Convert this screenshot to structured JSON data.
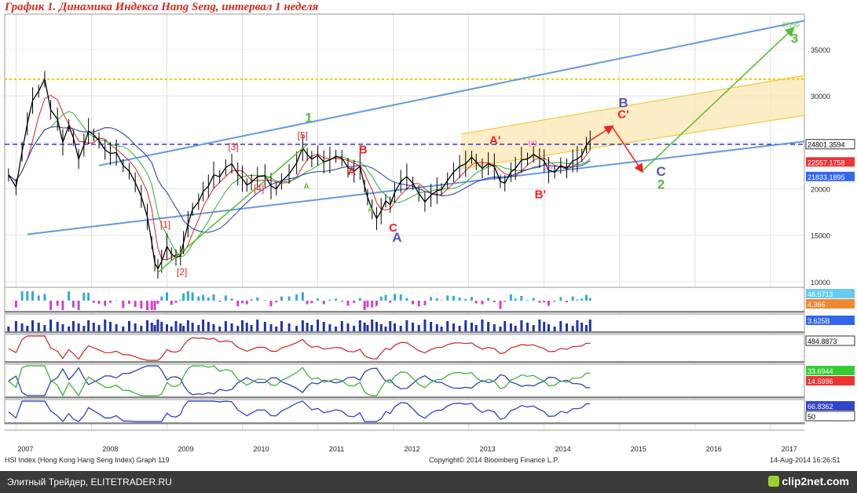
{
  "title": "График 1. Динамика Индекса Hang Seng, интервал 1 неделя",
  "footer": {
    "source": "HSI Index (Hong Kong Hang Seng Index) Graph 119",
    "copyright": "Copyright© 2014 Bloomberg Finance L.P.",
    "timestamp": "14-Aug-2014 16:26:51",
    "author": "Элитный Трейдер, ELITETRADER.RU",
    "logo_text": "clip2net.com"
  },
  "colors": {
    "background": "#ffffff",
    "price_bar": "#000000",
    "channel_blue": "#6699dd",
    "dashed_level": "#3333cc",
    "dotted_level": "#e8d21e",
    "target_channel_fill": "#fbe7b3",
    "wave_green": "#55bb33",
    "wave_red": "#ee2222",
    "wave_blue": "#5555bb",
    "ma_red": "#dd2222",
    "ma_green": "#33aa33",
    "ma_blue": "#2233aa"
  },
  "chart_data": {
    "type": "line",
    "instrument": "HSI Index",
    "interval": "1 неделя",
    "x_ticks": [
      "2007",
      "2008",
      "2009",
      "2010",
      "2011",
      "2012",
      "2013",
      "2014",
      "2015",
      "2016",
      "2017"
    ],
    "y_ticks": [
      10000,
      15000,
      20000,
      25000,
      30000,
      35000
    ],
    "ylim": [
      9400,
      38800
    ],
    "xlim": [
      2006.85,
      2017.45
    ],
    "weekly_close_path": [
      [
        2006.9,
        21500
      ],
      [
        2007.0,
        20200
      ],
      [
        2007.08,
        24000
      ],
      [
        2007.15,
        27000
      ],
      [
        2007.22,
        29500
      ],
      [
        2007.3,
        30500
      ],
      [
        2007.38,
        31800
      ],
      [
        2007.46,
        28500
      ],
      [
        2007.55,
        27500
      ],
      [
        2007.62,
        25000
      ],
      [
        2007.7,
        26800
      ],
      [
        2007.76,
        25500
      ],
      [
        2007.83,
        23200
      ],
      [
        2007.9,
        24700
      ],
      [
        2007.96,
        26200
      ],
      [
        2008.03,
        25800
      ],
      [
        2008.1,
        25200
      ],
      [
        2008.18,
        24200
      ],
      [
        2008.25,
        23800
      ],
      [
        2008.33,
        23900
      ],
      [
        2008.42,
        22500
      ],
      [
        2008.5,
        21900
      ],
      [
        2008.58,
        20700
      ],
      [
        2008.66,
        19200
      ],
      [
        2008.74,
        17000
      ],
      [
        2008.8,
        14200
      ],
      [
        2008.84,
        12000
      ],
      [
        2008.88,
        11400
      ],
      [
        2008.93,
        12200
      ],
      [
        2009.0,
        13800
      ],
      [
        2009.06,
        13000
      ],
      [
        2009.12,
        12600
      ],
      [
        2009.18,
        12800
      ],
      [
        2009.22,
        14200
      ],
      [
        2009.28,
        16200
      ],
      [
        2009.34,
        17800
      ],
      [
        2009.42,
        18600
      ],
      [
        2009.48,
        19700
      ],
      [
        2009.55,
        20300
      ],
      [
        2009.62,
        21500
      ],
      [
        2009.7,
        21300
      ],
      [
        2009.78,
        22300
      ],
      [
        2009.86,
        22700
      ],
      [
        2009.94,
        21600
      ],
      [
        2010.0,
        21100
      ],
      [
        2010.06,
        20400
      ],
      [
        2010.12,
        20700
      ],
      [
        2010.2,
        21300
      ],
      [
        2010.3,
        21400
      ],
      [
        2010.38,
        20300
      ],
      [
        2010.45,
        20000
      ],
      [
        2010.52,
        20800
      ],
      [
        2010.62,
        21600
      ],
      [
        2010.72,
        22800
      ],
      [
        2010.8,
        24400
      ],
      [
        2010.86,
        23700
      ],
      [
        2010.92,
        23200
      ],
      [
        2011.0,
        23600
      ],
      [
        2011.08,
        22900
      ],
      [
        2011.16,
        23100
      ],
      [
        2011.24,
        23500
      ],
      [
        2011.32,
        23300
      ],
      [
        2011.4,
        22300
      ],
      [
        2011.48,
        21900
      ],
      [
        2011.56,
        22400
      ],
      [
        2011.62,
        20300
      ],
      [
        2011.66,
        19100
      ],
      [
        2011.72,
        17800
      ],
      [
        2011.78,
        16800
      ],
      [
        2011.84,
        17600
      ],
      [
        2011.9,
        18700
      ],
      [
        2011.96,
        18300
      ],
      [
        2012.02,
        19600
      ],
      [
        2012.1,
        20800
      ],
      [
        2012.18,
        21300
      ],
      [
        2012.26,
        20600
      ],
      [
        2012.34,
        19500
      ],
      [
        2012.42,
        18600
      ],
      [
        2012.5,
        19300
      ],
      [
        2012.58,
        19800
      ],
      [
        2012.64,
        19900
      ],
      [
        2012.72,
        20900
      ],
      [
        2012.8,
        21800
      ],
      [
        2012.88,
        22400
      ],
      [
        2012.96,
        22700
      ],
      [
        2013.04,
        23400
      ],
      [
        2013.1,
        22900
      ],
      [
        2013.18,
        22200
      ],
      [
        2013.26,
        22700
      ],
      [
        2013.34,
        22400
      ],
      [
        2013.42,
        20800
      ],
      [
        2013.48,
        20600
      ],
      [
        2013.56,
        21800
      ],
      [
        2013.62,
        22200
      ],
      [
        2013.7,
        23100
      ],
      [
        2013.78,
        23200
      ],
      [
        2013.86,
        23700
      ],
      [
        2013.94,
        23300
      ],
      [
        2014.0,
        23000
      ],
      [
        2014.06,
        22000
      ],
      [
        2014.14,
        21800
      ],
      [
        2014.22,
        22500
      ],
      [
        2014.3,
        22200
      ],
      [
        2014.38,
        23000
      ],
      [
        2014.44,
        23200
      ],
      [
        2014.5,
        23600
      ],
      [
        2014.56,
        24700
      ],
      [
        2014.61,
        25200
      ]
    ],
    "projection_path": [
      [
        2014.61,
        25200
      ],
      [
        2014.9,
        26700
      ],
      [
        2015.3,
        21900
      ],
      [
        2017.3,
        37250
      ]
    ],
    "horizontal_levels": [
      {
        "value": 24801.3594,
        "style": "dashed"
      },
      {
        "value": 31800,
        "style": "dotted"
      }
    ],
    "right_labels": [
      {
        "text": "24801.3594",
        "value": 24801.3594
      },
      {
        "text": "22557.1758",
        "value": 22557.1758
      },
      {
        "text": "21833.1895",
        "value": 21833.1895
      }
    ],
    "target_label": "37250",
    "channel_lines": [
      {
        "from": [
          2007.15,
          15100
        ],
        "to": [
          2017.45,
          25100
        ]
      },
      {
        "from": [
          2008.1,
          22500
        ],
        "to": [
          2017.45,
          38100
        ]
      }
    ],
    "target_channel": {
      "lower": [
        [
          2012.9,
          22200
        ],
        [
          2017.45,
          27900
        ]
      ],
      "upper": [
        [
          2012.9,
          25900
        ],
        [
          2017.45,
          32200
        ]
      ]
    },
    "wave_labels": [
      {
        "text": "1",
        "x": 2010.88,
        "y": 27200,
        "color": "green"
      },
      {
        "text": "2",
        "x": 2015.55,
        "y": 20000,
        "color": "green"
      },
      {
        "text": "3",
        "x": 2017.32,
        "y": 35700,
        "color": "green"
      },
      {
        "text": "A",
        "x": 2010.85,
        "y": 20000,
        "color": "green_small"
      },
      {
        "text": "A",
        "x": 2011.7,
        "y": 17500,
        "color": "green_small"
      },
      {
        "text": "A",
        "x": 2011.45,
        "y": 21500,
        "color": "red"
      },
      {
        "text": "B",
        "x": 2011.6,
        "y": 23800,
        "color": "red"
      },
      {
        "text": "C",
        "x": 2012.0,
        "y": 15400,
        "color": "red"
      },
      {
        "text": "A",
        "x": 2012.05,
        "y": 14300,
        "color": "blue"
      },
      {
        "text": "A'",
        "x": 2013.35,
        "y": 24800,
        "color": "red"
      },
      {
        "text": "B'",
        "x": 2013.95,
        "y": 19000,
        "color": "red"
      },
      {
        "text": "C'",
        "x": 2015.05,
        "y": 27600,
        "color": "red"
      },
      {
        "text": "B",
        "x": 2015.05,
        "y": 28800,
        "color": "blue"
      },
      {
        "text": "C",
        "x": 2015.55,
        "y": 21400,
        "color": "blue"
      },
      {
        "text": "[1]",
        "x": 2008.98,
        "y": 15800,
        "color": "red_bracket"
      },
      {
        "text": "[2]",
        "x": 2009.2,
        "y": 10700,
        "color": "red_bracket"
      },
      {
        "text": "[3]",
        "x": 2009.88,
        "y": 24200,
        "color": "red_bracket"
      },
      {
        "text": "[4]",
        "x": 2010.22,
        "y": 19700,
        "color": "red_bracket"
      },
      {
        "text": "[5]",
        "x": 2010.8,
        "y": 25400,
        "color": "red_bracket"
      },
      {
        "text": "(a)",
        "x": 2013.85,
        "y": 24700,
        "color": "pink"
      },
      {
        "text": "(b)",
        "x": 2014.05,
        "y": 22100,
        "color": "pink"
      }
    ],
    "panels": [
      {
        "id": "macd",
        "values_text": [
          "46.5713",
          "4.366"
        ]
      },
      {
        "id": "volume",
        "values_text": [
          "3.625B"
        ]
      },
      {
        "id": "momentum",
        "values_text": [
          "484.8873"
        ]
      },
      {
        "id": "dmi",
        "values_text": [
          "33.6944",
          "14.5996"
        ]
      },
      {
        "id": "rsi",
        "values_text": [
          "66.8362",
          "50"
        ]
      }
    ]
  }
}
